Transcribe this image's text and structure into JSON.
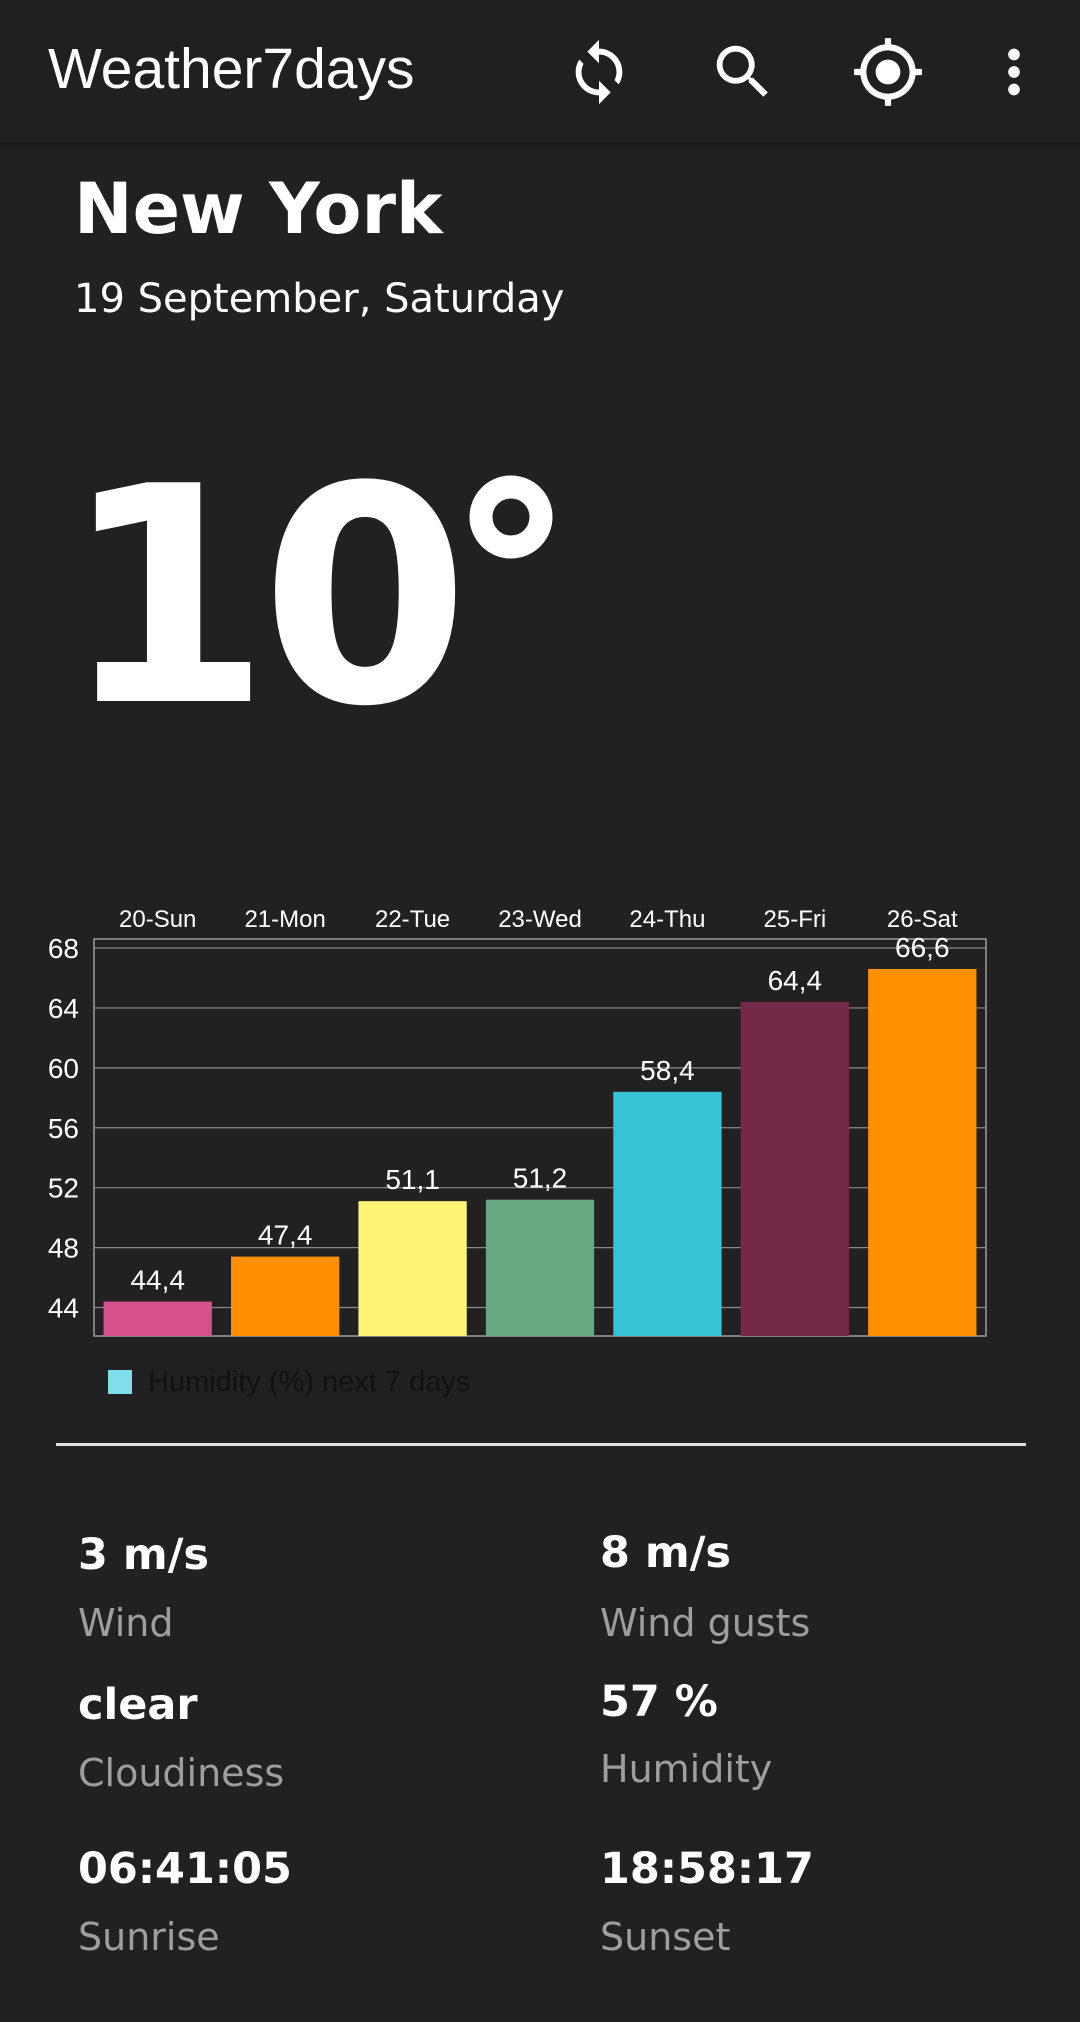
{
  "app": {
    "title": "Weather7days"
  },
  "toolbar": {
    "refresh_icon": "refresh-icon",
    "search_icon": "search-icon",
    "location_icon": "my-location-icon",
    "more_icon": "more-vert-icon"
  },
  "location": {
    "city": "New York",
    "date": "19 September, Saturday"
  },
  "current": {
    "temperature": "10"
  },
  "colors": {
    "background": "#212121",
    "text": "#ffffff",
    "secondary_text": "#9e9e9e",
    "legend_swatch": "#80deea"
  },
  "chart_data": {
    "type": "bar",
    "categories": [
      "20-Sun",
      "21-Mon",
      "22-Tue",
      "23-Wed",
      "24-Thu",
      "25-Fri",
      "26-Sat"
    ],
    "values": [
      44.4,
      47.4,
      51.1,
      51.2,
      58.4,
      64.4,
      66.6
    ],
    "value_labels": [
      "44,4",
      "47,4",
      "51,1",
      "51,2",
      "58,4",
      "64,4",
      "66,6"
    ],
    "colors": [
      "#d6508c",
      "#ff8f00",
      "#fff476",
      "#67a883",
      "#38c3d5",
      "#722a48",
      "#ff9100"
    ],
    "y_ticks": [
      44,
      48,
      52,
      56,
      60,
      64,
      68
    ],
    "ylim": [
      42.1,
      68.6
    ],
    "legend": {
      "label": "Humidity (%) next 7 days",
      "position": "bottom-left"
    },
    "grid": true,
    "category_axis": "top"
  },
  "details": [
    {
      "value": "3 m/s",
      "label": "Wind"
    },
    {
      "value": "8 m/s",
      "label": "Wind gusts"
    },
    {
      "value": "clear",
      "label": "Cloudiness"
    },
    {
      "value": "57 %",
      "label": "Humidity"
    },
    {
      "value": "06:41:05",
      "label": "Sunrise"
    },
    {
      "value": "18:58:17",
      "label": "Sunset"
    }
  ]
}
